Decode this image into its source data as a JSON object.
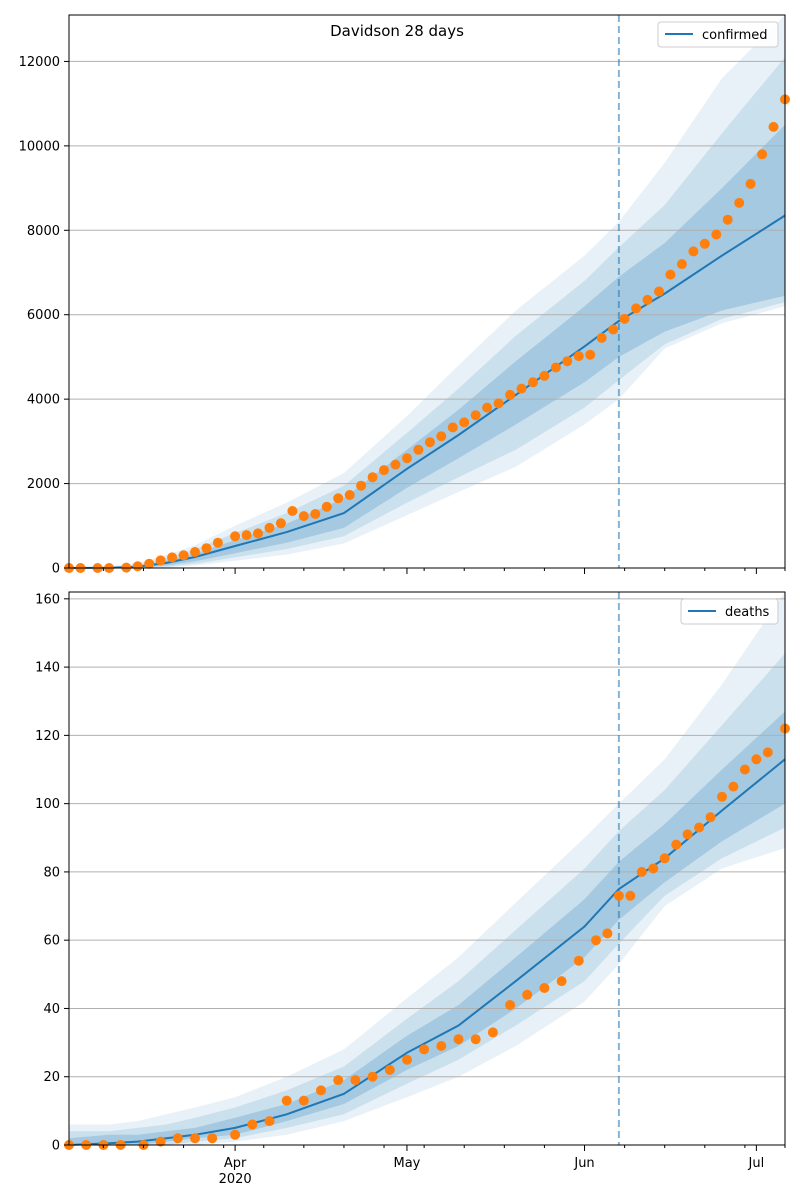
{
  "colors": {
    "model_line": "#1f77b4",
    "observed_points": "#ff7f0e",
    "band": "#1f77b4",
    "grid": "#b0b0b0",
    "cutoff_line": "#1f77b4"
  },
  "chart_data": [
    {
      "type": "line",
      "title": "Davidson 28 days",
      "legend": {
        "label": "confirmed",
        "placement": "top-right"
      },
      "x_axis": {
        "type": "date",
        "range": [
          "2020-03-03",
          "2020-07-06"
        ],
        "tick_labels": [
          "Apr",
          "May",
          "Jun",
          "Jul"
        ],
        "tick_dates": [
          "2020-04-01",
          "2020-05-01",
          "2020-06-01",
          "2020-07-01"
        ],
        "year_label": "2020",
        "show_tick_labels": false
      },
      "y_axis": {
        "ylim": [
          0,
          13100
        ],
        "ticks": [
          0,
          2000,
          4000,
          6000,
          8000,
          10000,
          12000
        ]
      },
      "grid": "horizontal",
      "forecast_start": "2020-06-07",
      "model": {
        "dates": [
          "2020-03-03",
          "2020-03-10",
          "2020-03-15",
          "2020-03-20",
          "2020-03-25",
          "2020-04-01",
          "2020-04-10",
          "2020-04-20",
          "2020-05-01",
          "2020-05-10",
          "2020-05-20",
          "2020-06-01",
          "2020-06-07",
          "2020-06-15",
          "2020-06-25",
          "2020-07-06"
        ],
        "median": [
          0,
          5,
          30,
          120,
          260,
          520,
          850,
          1300,
          2350,
          3150,
          4100,
          5250,
          5850,
          6500,
          7400,
          8350
        ],
        "bands": [
          {
            "lower": [
              0,
              0,
              10,
              60,
              160,
              350,
              600,
              950,
              1900,
              2600,
              3400,
              4400,
              5000,
              5600,
              6100,
              6450
            ],
            "upper": [
              0,
              10,
              50,
              180,
              340,
              660,
              1050,
              1650,
              2800,
              3750,
              4900,
              6200,
              6900,
              7700,
              9000,
              10500
            ]
          },
          {
            "lower": [
              0,
              0,
              0,
              30,
              100,
              250,
              450,
              750,
              1550,
              2150,
              2800,
              3800,
              4450,
              5300,
              5900,
              6300
            ],
            "upper": [
              0,
              20,
              80,
              240,
              440,
              830,
              1300,
              1950,
              3200,
              4250,
              5500,
              6800,
              7600,
              8600,
              10300,
              12100
            ]
          },
          {
            "lower": [
              0,
              0,
              0,
              10,
              60,
              170,
              320,
              580,
              1250,
              1800,
              2400,
              3400,
              4000,
              5200,
              5800,
              6200
            ],
            "upper": [
              0,
              40,
              120,
              300,
              540,
              1000,
              1550,
              2250,
              3600,
              4800,
              6100,
              7400,
              8200,
              9600,
              11600,
              13100
            ]
          }
        ]
      },
      "observed": {
        "dates": [
          "2020-03-03",
          "2020-03-05",
          "2020-03-08",
          "2020-03-10",
          "2020-03-13",
          "2020-03-15",
          "2020-03-17",
          "2020-03-19",
          "2020-03-21",
          "2020-03-23",
          "2020-03-25",
          "2020-03-27",
          "2020-03-29",
          "2020-04-01",
          "2020-04-03",
          "2020-04-05",
          "2020-04-07",
          "2020-04-09",
          "2020-04-11",
          "2020-04-13",
          "2020-04-15",
          "2020-04-17",
          "2020-04-19",
          "2020-04-21",
          "2020-04-23",
          "2020-04-25",
          "2020-04-27",
          "2020-04-29",
          "2020-05-01",
          "2020-05-03",
          "2020-05-05",
          "2020-05-07",
          "2020-05-09",
          "2020-05-11",
          "2020-05-13",
          "2020-05-15",
          "2020-05-17",
          "2020-05-19",
          "2020-05-21",
          "2020-05-23",
          "2020-05-25",
          "2020-05-27",
          "2020-05-29",
          "2020-05-31",
          "2020-06-02",
          "2020-06-04",
          "2020-06-06",
          "2020-06-08",
          "2020-06-10",
          "2020-06-12",
          "2020-06-14",
          "2020-06-16",
          "2020-06-18",
          "2020-06-20",
          "2020-06-22",
          "2020-06-24",
          "2020-06-26",
          "2020-06-28",
          "2020-06-30",
          "2020-07-02",
          "2020-07-04",
          "2020-07-06"
        ],
        "values": [
          0,
          0,
          0,
          0,
          10,
          40,
          100,
          180,
          250,
          300,
          380,
          470,
          600,
          750,
          780,
          820,
          950,
          1060,
          1350,
          1230,
          1280,
          1450,
          1650,
          1730,
          1950,
          2150,
          2320,
          2450,
          2600,
          2800,
          2980,
          3120,
          3330,
          3450,
          3620,
          3800,
          3900,
          4100,
          4250,
          4400,
          4550,
          4750,
          4900,
          5020,
          5050,
          5450,
          5650,
          5900,
          6150,
          6350,
          6550,
          6950,
          7200,
          7500,
          7680,
          7900,
          8250,
          8650,
          9100,
          9800,
          10450,
          11100
        ]
      }
    },
    {
      "type": "line",
      "title": "",
      "legend": {
        "label": "deaths",
        "placement": "top-right"
      },
      "x_axis": {
        "type": "date",
        "range": [
          "2020-03-03",
          "2020-07-06"
        ],
        "tick_labels": [
          "Apr",
          "May",
          "Jun",
          "Jul"
        ],
        "tick_dates": [
          "2020-04-01",
          "2020-05-01",
          "2020-06-01",
          "2020-07-01"
        ],
        "year_label": "2020",
        "show_tick_labels": true
      },
      "y_axis": {
        "ylim": [
          0,
          162
        ],
        "ticks": [
          0,
          20,
          40,
          60,
          80,
          100,
          120,
          140,
          160
        ]
      },
      "grid": "horizontal",
      "forecast_start": "2020-06-07",
      "model": {
        "dates": [
          "2020-03-03",
          "2020-03-10",
          "2020-03-15",
          "2020-03-20",
          "2020-03-25",
          "2020-04-01",
          "2020-04-10",
          "2020-04-20",
          "2020-05-01",
          "2020-05-10",
          "2020-05-20",
          "2020-06-01",
          "2020-06-07",
          "2020-06-15",
          "2020-06-25",
          "2020-07-06"
        ],
        "median": [
          0,
          0.5,
          1,
          2,
          3,
          5,
          9,
          15,
          27,
          35,
          48,
          64,
          75,
          84,
          98,
          113
        ],
        "bands": [
          {
            "lower": [
              0,
              0,
              0,
              1,
              2,
              3,
              7,
              12,
              22,
              29,
              40,
              55,
              66,
              77,
              89,
              100
            ],
            "upper": [
              2,
              3,
              3,
              4,
              5,
              8,
              12,
              19,
              32,
              41,
              55,
              72,
              83,
              94,
              110,
              127
            ]
          },
          {
            "lower": [
              0,
              0,
              0,
              0,
              1,
              2,
              5,
              9,
              18,
              25,
              35,
              48,
              59,
              73,
              84,
              93
            ],
            "upper": [
              4,
              4,
              5,
              6,
              8,
              11,
              16,
              23,
              37,
              48,
              63,
              81,
              92,
              104,
              123,
              144
            ]
          },
          {
            "lower": [
              0,
              0,
              0,
              0,
              0,
              1,
              3,
              7,
              14,
              20,
              29,
              42,
              53,
              70,
              81,
              87
            ],
            "upper": [
              6,
              6,
              7,
              9,
              11,
              14,
              20,
              28,
              43,
              55,
              71,
              90,
              100,
              113,
              135,
              162
            ]
          }
        ]
      },
      "observed": {
        "dates": [
          "2020-03-03",
          "2020-03-06",
          "2020-03-09",
          "2020-03-12",
          "2020-03-16",
          "2020-03-19",
          "2020-03-22",
          "2020-03-25",
          "2020-03-28",
          "2020-04-01",
          "2020-04-04",
          "2020-04-07",
          "2020-04-10",
          "2020-04-13",
          "2020-04-16",
          "2020-04-19",
          "2020-04-22",
          "2020-04-25",
          "2020-04-28",
          "2020-05-01",
          "2020-05-04",
          "2020-05-07",
          "2020-05-10",
          "2020-05-13",
          "2020-05-16",
          "2020-05-19",
          "2020-05-22",
          "2020-05-25",
          "2020-05-28",
          "2020-05-31",
          "2020-06-03",
          "2020-06-05",
          "2020-06-07",
          "2020-06-09",
          "2020-06-11",
          "2020-06-13",
          "2020-06-15",
          "2020-06-17",
          "2020-06-19",
          "2020-06-21",
          "2020-06-23",
          "2020-06-25",
          "2020-06-27",
          "2020-06-29",
          "2020-07-01",
          "2020-07-03",
          "2020-07-06"
        ],
        "values": [
          0,
          0,
          0,
          0,
          0,
          1,
          2,
          2,
          2,
          3,
          6,
          7,
          13,
          13,
          16,
          19,
          19,
          20,
          22,
          25,
          28,
          29,
          31,
          31,
          33,
          41,
          44,
          46,
          48,
          54,
          60,
          62,
          73,
          73,
          80,
          81,
          84,
          88,
          91,
          93,
          96,
          102,
          105,
          110,
          113,
          115,
          122
        ]
      }
    }
  ]
}
